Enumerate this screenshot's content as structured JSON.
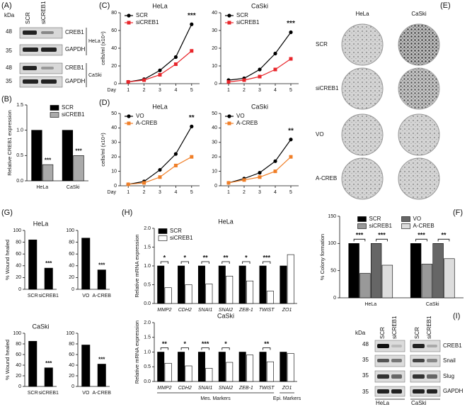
{
  "panel_labels": [
    "(A)",
    "(B)",
    "(C)",
    "(D)",
    "(E)",
    "(F)",
    "(G)",
    "(H)",
    "(I)"
  ],
  "blot_a": {
    "unit": "kDa",
    "markers": [
      "48",
      "35",
      "48",
      "35"
    ],
    "lanes": [
      "SCR",
      "siCREB1"
    ],
    "rows": [
      "CREB1",
      "GAPDH",
      "CREB1",
      "GAPDH"
    ],
    "groups": [
      "HeLa",
      "CaSki"
    ]
  },
  "colony_e": {
    "columns": [
      "HeLa",
      "CaSki"
    ],
    "rows": [
      "SCR",
      "siCREB1",
      "VO",
      "A-CREB"
    ]
  },
  "blot_i": {
    "unit": "kDa",
    "markers": [
      "48",
      "35",
      "35",
      "35"
    ],
    "lanes": [
      "SCR",
      "siCREB1",
      "SCR",
      "siCREB1"
    ],
    "rows": [
      "CREB1",
      "Snail",
      "Slug",
      "GAPDH"
    ],
    "groups": [
      "HeLa",
      "CaSki"
    ]
  },
  "chart_data": [
    {
      "type": "bar",
      "categories": [
        "HeLa",
        "CaSki"
      ],
      "series": [
        {
          "name": "SCR",
          "color": "#000000",
          "values": [
            1,
            1
          ]
        },
        {
          "name": "siCREB1",
          "color": "#aaaaaa",
          "values": [
            0.32,
            0.5
          ]
        }
      ],
      "ylabel": "Relative CREB1 expression",
      "ylim": [
        0,
        1.5
      ],
      "yticks": [
        {
          "value": 0,
          "label": "0.0"
        },
        0.5,
        {
          "value": 1,
          "label": "1.0"
        },
        1.5
      ],
      "annotations": [
        "***",
        "***"
      ],
      "legend": "upper right",
      "brackets": false
    },
    {
      "type": "line",
      "title": "HeLa",
      "x": [
        1,
        2,
        3,
        4,
        5
      ],
      "xlim": [
        0.5,
        5.5
      ],
      "xticks": [
        1,
        2,
        3,
        4,
        5
      ],
      "xlabel": "Day",
      "ylabel": "cells/ml (x10⁴)",
      "series": [
        {
          "name": "SCR",
          "color": "#000000",
          "marker": "circle",
          "values": [
            2,
            5,
            15,
            30,
            67
          ]
        },
        {
          "name": "siCREB1",
          "color": "#e8262b",
          "marker": "square",
          "values": [
            2,
            4,
            10,
            22,
            37
          ]
        }
      ],
      "ylim": [
        0,
        80
      ],
      "yticks": [
        0,
        20,
        40,
        60,
        80
      ],
      "annotation": "***",
      "legend": "upper left"
    },
    {
      "type": "line",
      "title": "CaSki",
      "x": [
        1,
        2,
        3,
        4,
        5
      ],
      "xlim": [
        0.5,
        5.5
      ],
      "xticks": [
        1,
        2,
        3,
        4,
        5
      ],
      "series": [
        {
          "name": "SCR",
          "color": "#000000",
          "marker": "circle",
          "values": [
            2,
            3,
            8,
            17,
            29
          ]
        },
        {
          "name": "siCREB1",
          "color": "#e8262b",
          "marker": "square",
          "values": [
            1,
            2,
            4,
            8,
            14
          ]
        }
      ],
      "ylim": [
        0,
        40
      ],
      "yticks": [
        0,
        10,
        20,
        30,
        40
      ],
      "annotation": "***",
      "legend": "upper left"
    },
    {
      "type": "line",
      "title": "HeLa",
      "x": [
        1,
        2,
        3,
        4,
        5
      ],
      "xlim": [
        0.5,
        5.5
      ],
      "xticks": [
        1,
        2,
        3,
        4,
        5
      ],
      "xlabel": "Day",
      "ylabel": "cells/ml (x10⁴)",
      "series": [
        {
          "name": "VO",
          "color": "#000000",
          "marker": "circle",
          "values": [
            1,
            3,
            11,
            22,
            41
          ]
        },
        {
          "name": "A-CREB",
          "color": "#f07f28",
          "marker": "square",
          "values": [
            1,
            2,
            6,
            14,
            20
          ]
        }
      ],
      "ylim": [
        0,
        50
      ],
      "yticks": [
        0,
        10,
        20,
        30,
        40,
        50
      ],
      "annotation": "**",
      "legend": "upper left"
    },
    {
      "type": "line",
      "title": "CaSki",
      "x": [
        1,
        2,
        3,
        4,
        5
      ],
      "xlim": [
        0.5,
        5.5
      ],
      "xticks": [
        1,
        2,
        3,
        4,
        5
      ],
      "series": [
        {
          "name": "VO",
          "color": "#000000",
          "marker": "circle",
          "values": [
            2,
            5,
            9,
            17,
            32
          ]
        },
        {
          "name": "A-CREB",
          "color": "#f07f28",
          "marker": "square",
          "values": [
            2,
            4,
            6,
            10,
            20
          ]
        }
      ],
      "ylim": [
        0,
        50
      ],
      "yticks": [
        0,
        10,
        20,
        30,
        40,
        50
      ],
      "annotation": "**",
      "legend": "upper left"
    },
    {
      "type": "bar",
      "title": "HeLa",
      "categories": [
        "SCR",
        "siCREB1"
      ],
      "values": [
        84,
        36
      ],
      "color": "#000000",
      "ylabel": "% Wound healed",
      "ylim": [
        0,
        100
      ],
      "yticks": [
        0,
        20,
        40,
        60,
        80,
        100
      ],
      "annotations": [
        null,
        "***"
      ],
      "brackets": false
    },
    {
      "type": "bar",
      "categories": [
        "VO",
        "A-CREB"
      ],
      "values": [
        87,
        33
      ],
      "color": "#000000",
      "ylim": [
        0,
        100
      ],
      "yticks": [
        0,
        20,
        40,
        60,
        80,
        100
      ],
      "annotations": [
        null,
        "***"
      ],
      "brackets": false
    },
    {
      "type": "bar",
      "title": "CaSki",
      "categories": [
        "SCR",
        "siCREB1"
      ],
      "values": [
        85,
        35
      ],
      "color": "#000000",
      "ylabel": "% Wound healed",
      "ylim": [
        0,
        100
      ],
      "yticks": [
        0,
        20,
        40,
        60,
        80,
        100
      ],
      "annotations": [
        null,
        "***"
      ],
      "brackets": false
    },
    {
      "type": "bar",
      "categories": [
        "VO",
        "A-CREB"
      ],
      "values": [
        78,
        42
      ],
      "color": "#000000",
      "ylim": [
        0,
        100
      ],
      "yticks": [
        0,
        20,
        40,
        60,
        80,
        100
      ],
      "annotations": [
        null,
        "***"
      ],
      "brackets": false
    },
    {
      "type": "bar",
      "title": "HeLa",
      "categories": [
        "MMP2",
        "CDH2",
        "SNAI1",
        "SNAI2",
        "ZEB-1",
        "TWIST",
        "ZO1"
      ],
      "series": [
        {
          "name": "SCR",
          "color": "#000000",
          "values": [
            1,
            1,
            1,
            1,
            1,
            1,
            1
          ]
        },
        {
          "name": "siCREB1",
          "color": "#ffffff",
          "values": [
            0.42,
            0.5,
            0.52,
            0.73,
            0.6,
            0.33,
            1.3
          ]
        }
      ],
      "ylabel": "Relative mRNA expression",
      "ylim": [
        0,
        2
      ],
      "yticks": [
        {
          "value": 0,
          "label": "0.0"
        },
        0.5,
        {
          "value": 1,
          "label": "1.0"
        },
        1.5,
        {
          "value": 2,
          "label": "2.0"
        }
      ],
      "annotations": [
        "*",
        "*",
        "**",
        "**",
        "*",
        "***",
        null
      ],
      "legend": "upper left",
      "brackets": true
    },
    {
      "type": "bar",
      "title": "CaSki",
      "categories": [
        "MMP2",
        "CDH2",
        "SNAI1",
        "SNAI2",
        "ZEB-1",
        "TWIST",
        "ZO1"
      ],
      "series": [
        {
          "name": "SCR",
          "color": "#000000",
          "values": [
            1,
            1,
            1,
            1,
            1,
            1,
            1
          ]
        },
        {
          "name": "siCREB1",
          "color": "#ffffff",
          "values": [
            0.62,
            0.53,
            0.45,
            0.65,
            0.9,
            0.67,
            0.95
          ]
        }
      ],
      "ylabel": "Relative mRNA expression",
      "ylim": [
        0,
        2
      ],
      "yticks": [
        {
          "value": 0,
          "label": "0.0"
        },
        0.5,
        {
          "value": 1,
          "label": "1.0"
        },
        1.5,
        {
          "value": 2,
          "label": "2.0"
        }
      ],
      "annotations": [
        "**",
        "*",
        "***",
        "*",
        null,
        "**",
        null
      ],
      "group_labels": [
        "Mes. Markers",
        "Epi. Markers"
      ],
      "brackets": true
    },
    {
      "type": "bar",
      "categories": [
        "HeLa",
        "CaSki"
      ],
      "series": [
        {
          "name": "SCR",
          "color": "#000000",
          "values": [
            100,
            100
          ]
        },
        {
          "name": "siCREB1",
          "color": "#999999",
          "values": [
            45,
            62
          ]
        },
        {
          "name": "VO",
          "color": "#666666",
          "values": [
            100,
            100
          ]
        },
        {
          "name": "A-CREB",
          "color": "#dddddd",
          "values": [
            60,
            72
          ]
        }
      ],
      "ylabel": "% Colony formation",
      "ylim": [
        0,
        150
      ],
      "yticks": [
        0,
        50,
        100,
        150
      ],
      "annotations": [
        [
          "***",
          "***"
        ],
        [
          "***",
          "**"
        ]
      ],
      "legend": "upper center",
      "brackets": true
    }
  ]
}
